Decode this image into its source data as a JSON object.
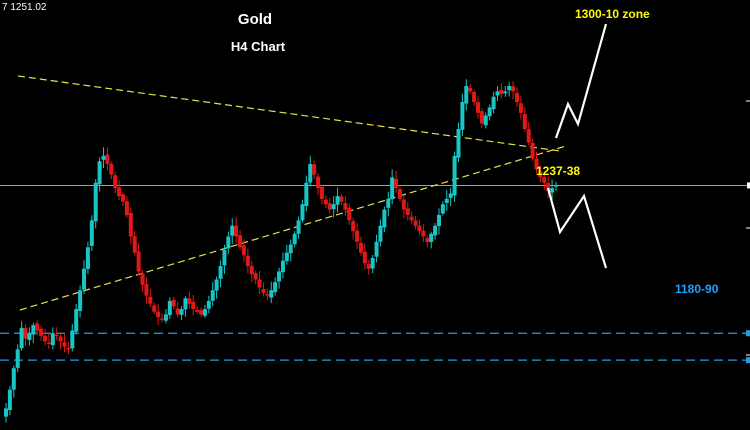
{
  "chart_data": {
    "type": "candlestick",
    "instrument": "Gold",
    "timeframe": "H4 Chart",
    "price_label": "7 1251.02",
    "annotations": {
      "upside_target": "1300-10 zone",
      "pivot": "1237-38",
      "downside_target": "1180-90"
    },
    "ylim": [
      1160,
      1320
    ],
    "levels": {
      "current": 1251,
      "pivot": 1237.5,
      "support_top": 1196,
      "support_bottom": 1186
    },
    "series": [
      {
        "name": "",
        "values": [
          1168,
          1175,
          1183,
          1190,
          1198,
          1194,
          1196,
          1199,
          1197,
          1195,
          1193,
          1192,
          1196,
          1195,
          1193,
          1191,
          1190,
          1197,
          1205,
          1212,
          1220,
          1228,
          1238,
          1252,
          1260,
          1262,
          1259,
          1255,
          1250,
          1247,
          1245,
          1240,
          1232,
          1226,
          1219,
          1214,
          1210,
          1207,
          1204,
          1202,
          1201,
          1203,
          1208,
          1206,
          1203,
          1205,
          1209,
          1207,
          1205,
          1204,
          1203,
          1205,
          1208,
          1212,
          1216,
          1221,
          1227,
          1232,
          1236,
          1232,
          1228,
          1225,
          1221,
          1218,
          1216,
          1213,
          1211,
          1210,
          1212,
          1215,
          1219,
          1223,
          1226,
          1229,
          1233,
          1238,
          1244,
          1252,
          1259,
          1255,
          1250,
          1246,
          1244,
          1242,
          1244,
          1247,
          1245,
          1242,
          1238,
          1234,
          1230,
          1226,
          1222,
          1220,
          1224,
          1230,
          1236,
          1242,
          1246,
          1254,
          1250,
          1246,
          1242,
          1240,
          1238,
          1236,
          1234,
          1232,
          1230,
          1233,
          1236,
          1240,
          1244,
          1246,
          1248,
          1262,
          1272,
          1282,
          1288,
          1286,
          1282,
          1278,
          1274,
          1277,
          1280,
          1284,
          1286,
          1285,
          1286,
          1288,
          1286,
          1282,
          1278,
          1272,
          1267,
          1261,
          1257,
          1254,
          1252,
          1249,
          1250,
          1251
        ]
      }
    ],
    "candle_width": 4
  },
  "colors": {
    "background": "#000000",
    "bull": "#19c6c6",
    "bear": "#e01818",
    "trendline": "#e8e04a",
    "level_line": "#1e9ee6",
    "current_line": "#8fa3c0",
    "projection": "#ffffff",
    "title": "#ffffff",
    "annotation_yellow": "#ffff00",
    "annotation_blue": "#1ea0ff"
  }
}
